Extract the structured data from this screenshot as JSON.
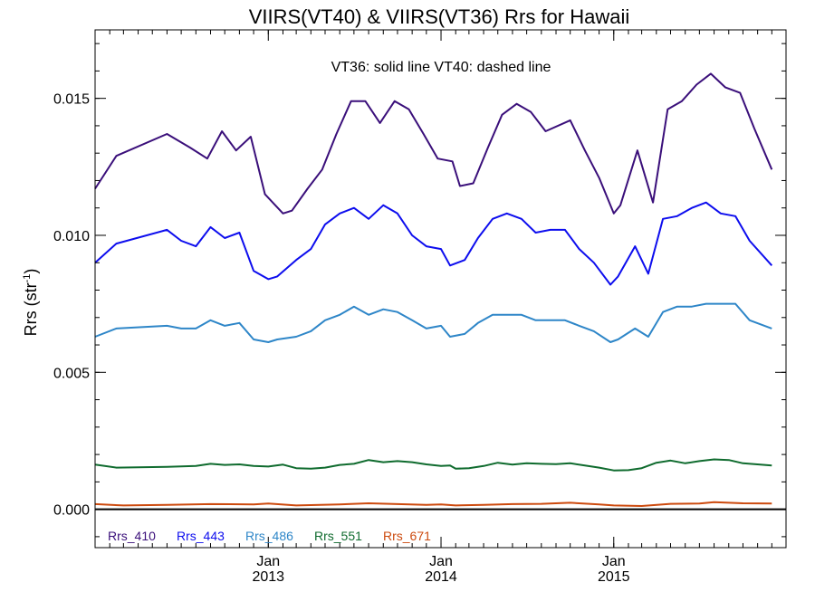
{
  "chart_data": {
    "type": "line",
    "title": "VIIRS(VT40) & VIIRS(VT36)  Rrs for Hawaii",
    "xlabel": "",
    "ylabel": "Rrs (str",
    "ylabel_sup": "-1",
    "ylabel_close": ")",
    "annotation": "VT36: solid line   VT40: dashed line",
    "x_axis": {
      "type": "time",
      "range": [
        "2012-01-01",
        "2015-12-31"
      ],
      "major_ticks": [
        {
          "date": "2013-01-01",
          "label_top": "Jan",
          "label_bottom": "2013"
        },
        {
          "date": "2014-01-01",
          "label_top": "Jan",
          "label_bottom": "2014"
        },
        {
          "date": "2015-01-01",
          "label_top": "Jan",
          "label_bottom": "2015"
        }
      ]
    },
    "y_axis": {
      "range": [
        -0.0014,
        0.0175
      ],
      "ticks": [
        0.0,
        0.005,
        0.01,
        0.015
      ],
      "tick_labels": [
        "0.000",
        "0.005",
        "0.010",
        "0.015"
      ],
      "minor_step": 0.001
    },
    "zero_line": 0,
    "legend": {
      "placement": "bottom-left",
      "entries": [
        "Rrs_410",
        "Rrs_443",
        "Rrs_486",
        "Rrs_551",
        "Rrs_671"
      ]
    },
    "series": [
      {
        "name": "Rrs_410",
        "color": "#3a0f7a",
        "points": [
          [
            "2012-01-01",
            0.0117
          ],
          [
            "2012-02-15",
            0.0129
          ],
          [
            "2012-06-01",
            0.0137
          ],
          [
            "2012-07-20",
            0.0132
          ],
          [
            "2012-08-25",
            0.0128
          ],
          [
            "2012-09-25",
            0.0138
          ],
          [
            "2012-10-25",
            0.0131
          ],
          [
            "2012-11-25",
            0.0136
          ],
          [
            "2012-12-25",
            0.0115
          ],
          [
            "2013-02-01",
            0.0108
          ],
          [
            "2013-02-20",
            0.0109
          ],
          [
            "2013-03-25",
            0.0117
          ],
          [
            "2013-04-25",
            0.0124
          ],
          [
            "2013-05-25",
            0.0137
          ],
          [
            "2013-06-25",
            0.0149
          ],
          [
            "2013-07-25",
            0.0149
          ],
          [
            "2013-08-25",
            0.0141
          ],
          [
            "2013-09-25",
            0.0149
          ],
          [
            "2013-10-25",
            0.0146
          ],
          [
            "2013-11-25",
            0.0137
          ],
          [
            "2013-12-25",
            0.0128
          ],
          [
            "2014-01-25",
            0.0127
          ],
          [
            "2014-02-10",
            0.0118
          ],
          [
            "2014-03-10",
            0.0119
          ],
          [
            "2014-04-10",
            0.0132
          ],
          [
            "2014-05-10",
            0.0144
          ],
          [
            "2014-06-10",
            0.0148
          ],
          [
            "2014-07-10",
            0.0145
          ],
          [
            "2014-08-10",
            0.0138
          ],
          [
            "2014-10-01",
            0.0142
          ],
          [
            "2014-11-01",
            0.0131
          ],
          [
            "2014-12-01",
            0.0121
          ],
          [
            "2015-01-01",
            0.0108
          ],
          [
            "2015-01-15",
            0.0111
          ],
          [
            "2015-02-20",
            0.0131
          ],
          [
            "2015-03-25",
            0.0112
          ],
          [
            "2015-04-25",
            0.0146
          ],
          [
            "2015-05-25",
            0.0149
          ],
          [
            "2015-06-25",
            0.0155
          ],
          [
            "2015-07-25",
            0.0159
          ],
          [
            "2015-08-25",
            0.0154
          ],
          [
            "2015-09-25",
            0.0152
          ],
          [
            "2015-10-25",
            0.0139
          ],
          [
            "2015-12-01",
            0.0124
          ]
        ]
      },
      {
        "name": "Rrs_443",
        "color": "#0d0dee",
        "points": [
          [
            "2012-01-01",
            0.009
          ],
          [
            "2012-02-15",
            0.0097
          ],
          [
            "2012-06-01",
            0.0102
          ],
          [
            "2012-07-01",
            0.0098
          ],
          [
            "2012-08-01",
            0.0096
          ],
          [
            "2012-09-01",
            0.0103
          ],
          [
            "2012-10-01",
            0.0099
          ],
          [
            "2012-11-01",
            0.0101
          ],
          [
            "2012-12-01",
            0.0087
          ],
          [
            "2013-01-01",
            0.0084
          ],
          [
            "2013-01-20",
            0.0085
          ],
          [
            "2013-03-01",
            0.0091
          ],
          [
            "2013-04-01",
            0.0095
          ],
          [
            "2013-05-01",
            0.0104
          ],
          [
            "2013-06-01",
            0.0108
          ],
          [
            "2013-07-01",
            0.011
          ],
          [
            "2013-08-01",
            0.0106
          ],
          [
            "2013-09-01",
            0.0111
          ],
          [
            "2013-10-01",
            0.0108
          ],
          [
            "2013-11-01",
            0.01
          ],
          [
            "2013-12-01",
            0.0096
          ],
          [
            "2014-01-01",
            0.0095
          ],
          [
            "2014-01-20",
            0.0089
          ],
          [
            "2014-02-20",
            0.0091
          ],
          [
            "2014-03-20",
            0.0099
          ],
          [
            "2014-04-20",
            0.0106
          ],
          [
            "2014-05-20",
            0.0108
          ],
          [
            "2014-06-20",
            0.0106
          ],
          [
            "2014-07-20",
            0.0101
          ],
          [
            "2014-08-20",
            0.0102
          ],
          [
            "2014-09-20",
            0.0102
          ],
          [
            "2014-10-20",
            0.0095
          ],
          [
            "2014-11-20",
            0.009
          ],
          [
            "2014-12-25",
            0.0082
          ],
          [
            "2015-01-10",
            0.0085
          ],
          [
            "2015-02-15",
            0.0096
          ],
          [
            "2015-03-15",
            0.0086
          ],
          [
            "2015-04-15",
            0.0106
          ],
          [
            "2015-05-15",
            0.0107
          ],
          [
            "2015-06-15",
            0.011
          ],
          [
            "2015-07-15",
            0.0112
          ],
          [
            "2015-08-15",
            0.0108
          ],
          [
            "2015-09-15",
            0.0107
          ],
          [
            "2015-10-15",
            0.0098
          ],
          [
            "2015-12-01",
            0.0089
          ]
        ]
      },
      {
        "name": "Rrs_486",
        "color": "#2e86c8",
        "points": [
          [
            "2012-01-01",
            0.0063
          ],
          [
            "2012-02-15",
            0.0066
          ],
          [
            "2012-06-01",
            0.0067
          ],
          [
            "2012-07-01",
            0.0066
          ],
          [
            "2012-08-01",
            0.0066
          ],
          [
            "2012-09-01",
            0.0069
          ],
          [
            "2012-10-01",
            0.0067
          ],
          [
            "2012-11-01",
            0.0068
          ],
          [
            "2012-12-01",
            0.0062
          ],
          [
            "2013-01-01",
            0.0061
          ],
          [
            "2013-01-20",
            0.0062
          ],
          [
            "2013-03-01",
            0.0063
          ],
          [
            "2013-04-01",
            0.0065
          ],
          [
            "2013-05-01",
            0.0069
          ],
          [
            "2013-06-01",
            0.0071
          ],
          [
            "2013-07-01",
            0.0074
          ],
          [
            "2013-08-01",
            0.0071
          ],
          [
            "2013-09-01",
            0.0073
          ],
          [
            "2013-10-01",
            0.0072
          ],
          [
            "2013-11-01",
            0.0069
          ],
          [
            "2013-12-01",
            0.0066
          ],
          [
            "2014-01-01",
            0.0067
          ],
          [
            "2014-01-20",
            0.0063
          ],
          [
            "2014-02-20",
            0.0064
          ],
          [
            "2014-03-20",
            0.0068
          ],
          [
            "2014-04-20",
            0.0071
          ],
          [
            "2014-05-20",
            0.0071
          ],
          [
            "2014-06-20",
            0.0071
          ],
          [
            "2014-07-20",
            0.0069
          ],
          [
            "2014-08-20",
            0.0069
          ],
          [
            "2014-09-20",
            0.0069
          ],
          [
            "2014-10-20",
            0.0067
          ],
          [
            "2014-11-20",
            0.0065
          ],
          [
            "2014-12-25",
            0.0061
          ],
          [
            "2015-01-10",
            0.0062
          ],
          [
            "2015-02-15",
            0.0066
          ],
          [
            "2015-03-15",
            0.0063
          ],
          [
            "2015-04-15",
            0.0072
          ],
          [
            "2015-05-15",
            0.0074
          ],
          [
            "2015-06-15",
            0.0074
          ],
          [
            "2015-07-15",
            0.0075
          ],
          [
            "2015-08-15",
            0.0075
          ],
          [
            "2015-09-15",
            0.0075
          ],
          [
            "2015-10-15",
            0.0069
          ],
          [
            "2015-12-01",
            0.0066
          ]
        ]
      },
      {
        "name": "Rrs_551",
        "color": "#0f6b2e",
        "points": [
          [
            "2012-01-01",
            0.00163
          ],
          [
            "2012-02-15",
            0.00152
          ],
          [
            "2012-06-01",
            0.00155
          ],
          [
            "2012-08-01",
            0.00158
          ],
          [
            "2012-09-01",
            0.00166
          ],
          [
            "2012-10-01",
            0.00162
          ],
          [
            "2012-11-01",
            0.00164
          ],
          [
            "2012-12-01",
            0.00158
          ],
          [
            "2013-01-01",
            0.00156
          ],
          [
            "2013-02-01",
            0.00163
          ],
          [
            "2013-03-01",
            0.0015
          ],
          [
            "2013-04-01",
            0.00148
          ],
          [
            "2013-05-01",
            0.00152
          ],
          [
            "2013-06-01",
            0.00162
          ],
          [
            "2013-07-01",
            0.00166
          ],
          [
            "2013-08-01",
            0.0018
          ],
          [
            "2013-09-01",
            0.00172
          ],
          [
            "2013-10-01",
            0.00176
          ],
          [
            "2013-11-01",
            0.00172
          ],
          [
            "2013-12-01",
            0.00164
          ],
          [
            "2014-01-01",
            0.00158
          ],
          [
            "2014-01-20",
            0.0016
          ],
          [
            "2014-02-01",
            0.00148
          ],
          [
            "2014-03-01",
            0.0015
          ],
          [
            "2014-04-01",
            0.00158
          ],
          [
            "2014-05-01",
            0.0017
          ],
          [
            "2014-06-01",
            0.00163
          ],
          [
            "2014-07-01",
            0.00168
          ],
          [
            "2014-08-01",
            0.00166
          ],
          [
            "2014-09-01",
            0.00165
          ],
          [
            "2014-10-01",
            0.00168
          ],
          [
            "2014-11-01",
            0.0016
          ],
          [
            "2014-12-01",
            0.00152
          ],
          [
            "2015-01-01",
            0.00142
          ],
          [
            "2015-02-01",
            0.00143
          ],
          [
            "2015-03-01",
            0.0015
          ],
          [
            "2015-04-01",
            0.0017
          ],
          [
            "2015-05-01",
            0.00178
          ],
          [
            "2015-06-01",
            0.00168
          ],
          [
            "2015-07-01",
            0.00176
          ],
          [
            "2015-08-01",
            0.00182
          ],
          [
            "2015-09-01",
            0.0018
          ],
          [
            "2015-10-01",
            0.00168
          ],
          [
            "2015-12-01",
            0.0016
          ]
        ]
      },
      {
        "name": "Rrs_671",
        "color": "#cc4a0e",
        "points": [
          [
            "2012-01-01",
            0.00019
          ],
          [
            "2012-03-01",
            0.00014
          ],
          [
            "2012-06-01",
            0.00016
          ],
          [
            "2012-09-01",
            0.00019
          ],
          [
            "2012-12-01",
            0.00018
          ],
          [
            "2013-01-01",
            0.00021
          ],
          [
            "2013-03-01",
            0.00014
          ],
          [
            "2013-06-01",
            0.00018
          ],
          [
            "2013-08-01",
            0.00022
          ],
          [
            "2013-10-01",
            0.00019
          ],
          [
            "2013-12-01",
            0.00016
          ],
          [
            "2014-01-01",
            0.00018
          ],
          [
            "2014-02-01",
            0.00014
          ],
          [
            "2014-04-01",
            0.00016
          ],
          [
            "2014-06-01",
            0.00019
          ],
          [
            "2014-08-01",
            0.0002
          ],
          [
            "2014-10-01",
            0.00024
          ],
          [
            "2014-12-01",
            0.00018
          ],
          [
            "2015-01-01",
            0.00014
          ],
          [
            "2015-03-01",
            0.00012
          ],
          [
            "2015-05-01",
            0.0002
          ],
          [
            "2015-07-01",
            0.00021
          ],
          [
            "2015-08-01",
            0.00026
          ],
          [
            "2015-10-01",
            0.00022
          ],
          [
            "2015-12-01",
            0.00021
          ]
        ]
      }
    ]
  }
}
